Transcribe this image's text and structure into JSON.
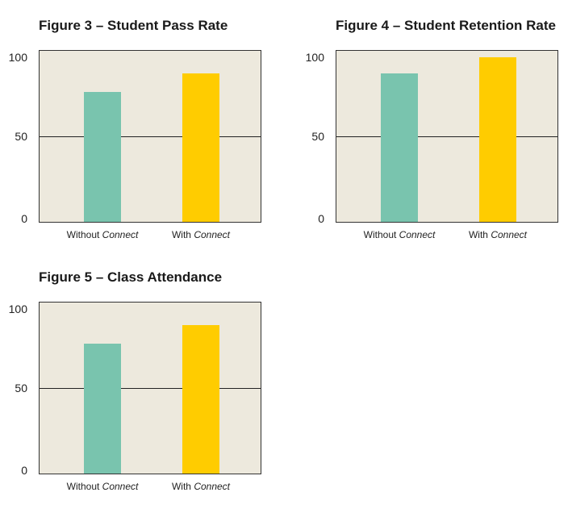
{
  "chart_data": [
    {
      "type": "bar",
      "title": "Figure 3 – Student Pass Rate",
      "categories": [
        {
          "plain": "Without ",
          "italic": "Connect"
        },
        {
          "plain": "With ",
          "italic": "Connect"
        }
      ],
      "values": [
        76,
        87
      ],
      "colors": [
        "#79c4ae",
        "#ffcc00"
      ],
      "ylim": [
        0,
        100
      ],
      "yticks": [
        "0",
        "50",
        "100"
      ],
      "gridline_at": 50
    },
    {
      "type": "bar",
      "title": "Figure 4 – Student Retention Rate",
      "categories": [
        {
          "plain": "Without ",
          "italic": "Connect"
        },
        {
          "plain": "With ",
          "italic": "Connect"
        }
      ],
      "values": [
        87,
        96
      ],
      "colors": [
        "#79c4ae",
        "#ffcc00"
      ],
      "ylim": [
        0,
        100
      ],
      "yticks": [
        "0",
        "50",
        "100"
      ],
      "gridline_at": 50
    },
    {
      "type": "bar",
      "title": "Figure 5 – Class Attendance",
      "categories": [
        {
          "plain": "Without ",
          "italic": "Connect"
        },
        {
          "plain": "With ",
          "italic": "Connect"
        }
      ],
      "values": [
        76,
        87
      ],
      "colors": [
        "#79c4ae",
        "#ffcc00"
      ],
      "ylim": [
        0,
        100
      ],
      "yticks": [
        "0",
        "50",
        "100"
      ],
      "gridline_at": 50
    }
  ]
}
